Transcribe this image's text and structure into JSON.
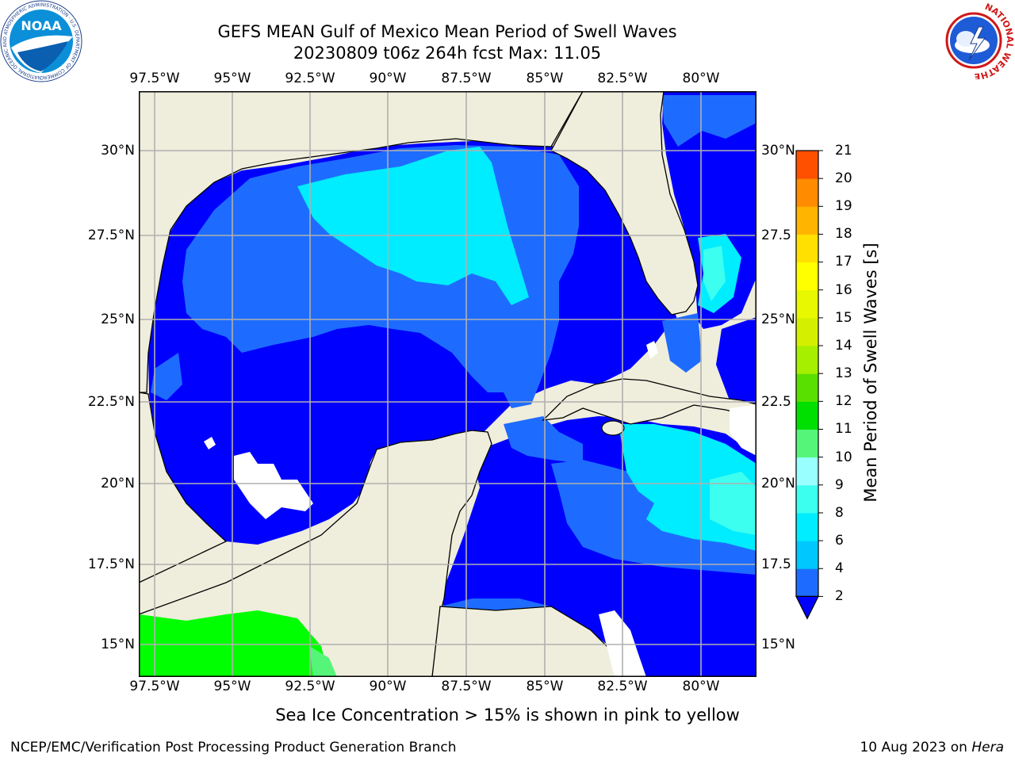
{
  "header": {
    "title_line1": "GEFS MEAN Gulf of Mexico Mean Period of Swell Waves",
    "title_line2": "20230809 t06z 264h fcst   Max: 11.05"
  },
  "logos": {
    "noaa_text": "NOAA",
    "noaa_ring_text": "NATIONAL OCEANIC AND ATMOSPHERIC ADMINISTRATION · U.S. DEPARTMENT OF COMMERCE",
    "nws_ring_text": "NATIONAL WEATHER SERVICE"
  },
  "map": {
    "lon_ticks": [
      "97.5°W",
      "95°W",
      "92.5°W",
      "90°W",
      "87.5°W",
      "85°W",
      "82.5°W",
      "80°W"
    ],
    "lat_ticks_left": [
      "30°N",
      "27.5°N",
      "25°N",
      "22.5°N",
      "20°N",
      "17.5°N",
      "15°N"
    ],
    "lat_ticks_right": [
      "30°N",
      "27.5",
      "25°N",
      "22.5",
      "20°N",
      "17.5",
      "15°N"
    ]
  },
  "colorbar": {
    "title": "Mean Period of Swell Waves [s]",
    "labels": [
      "2",
      "4",
      "6",
      "8",
      "9",
      "10",
      "11",
      "12",
      "13",
      "14",
      "15",
      "16",
      "17",
      "18",
      "19",
      "20",
      "21"
    ],
    "colors": [
      "#1e6cff",
      "#00c8ff",
      "#00ecff",
      "#3cfff0",
      "#99ffff",
      "#55f57a",
      "#00e000",
      "#5ae000",
      "#a6ef00",
      "#d4f000",
      "#e8f800",
      "#ffff00",
      "#ffe000",
      "#ffb400",
      "#ff8c00",
      "#ff5000",
      "#ff1e00",
      "#ff0000"
    ],
    "under_color": "#0000ff"
  },
  "note": "Sea Ice Concentration > 15% is shown in pink to yellow",
  "footer": {
    "left": "NCEP/EMC/Verification Post Processing Product Generation Branch",
    "right_date": "10 Aug 2023 on ",
    "right_machine": "Hera"
  }
}
